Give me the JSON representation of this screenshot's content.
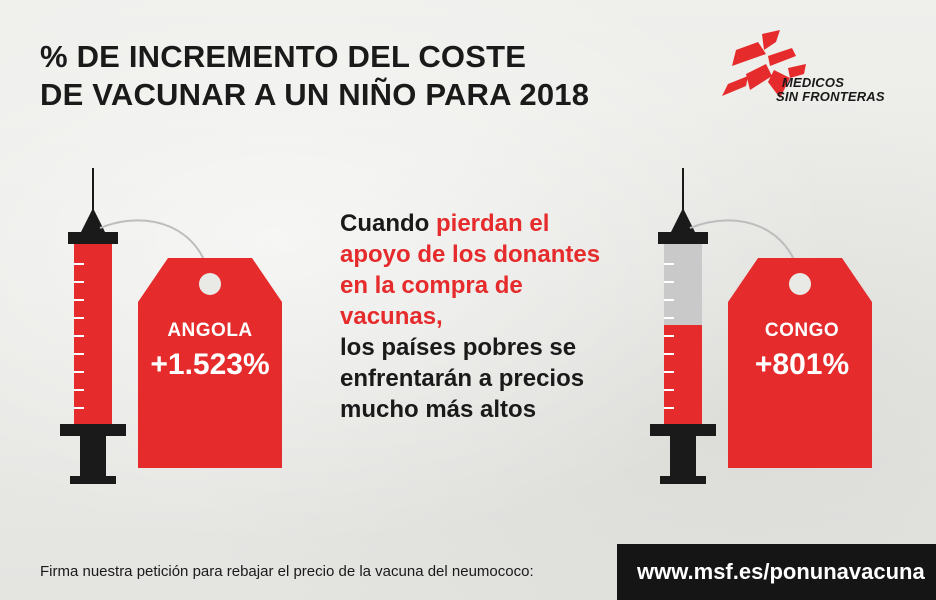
{
  "title": {
    "line1": "% DE INCREMENTO DEL COSTE",
    "line2": "DE VACUNAR A UN NIÑO PARA 2018"
  },
  "logo": {
    "line1": "MEDICOS",
    "line2": "SIN FRONTERAS",
    "brand_color": "#e52b2b"
  },
  "tags": [
    {
      "country": "ANGOLA",
      "value": "+1.523%",
      "fill_level": 1.0
    },
    {
      "country": "CONGO",
      "value": "+801%",
      "fill_level": 0.55
    }
  ],
  "message": {
    "part1": "Cuando ",
    "part2_red": "pierdan el apoyo de los donantes en la compra de vacunas,",
    "part3": "los países pobres se enfrentarán a precios mucho más altos"
  },
  "footer": {
    "text": "Firma nuestra petición para rebajar el precio de la vacuna del neumococo:",
    "url": "www.msf.es/ponunavacuna"
  },
  "colors": {
    "red": "#e52b2b",
    "dark": "#1a1a1a",
    "grey_fill": "#c9c9c9",
    "background": "#e9e9e6"
  },
  "icons": [
    "msf-logo-icon",
    "syringe-icon",
    "price-tag-icon"
  ]
}
